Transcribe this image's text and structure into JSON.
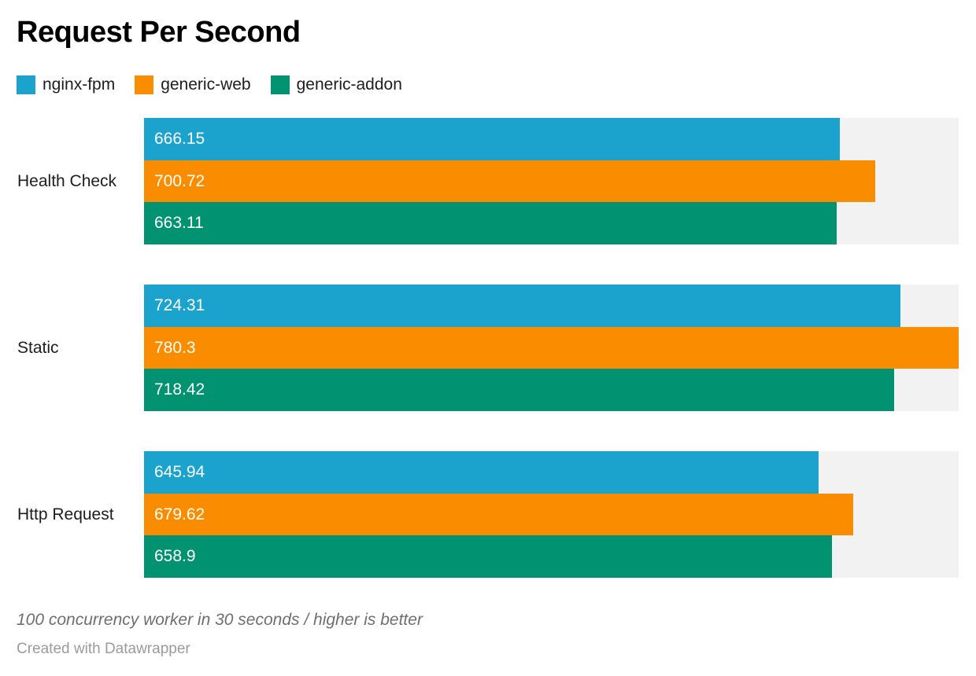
{
  "title": "Request Per Second",
  "footnote": "100 concurrency worker in 30 seconds / higher is better",
  "attribution": "Created with Datawrapper",
  "colors": {
    "background": "#ffffff",
    "track": "#f2f2f2",
    "text_dark": "#1d1d1d",
    "footnote_gray": "#6e6e6e",
    "attribution_gray": "#9b9b9b"
  },
  "chart_data": {
    "type": "bar",
    "orientation": "horizontal",
    "title": "Request Per Second",
    "categories": [
      "Health Check",
      "Static",
      "Http Request"
    ],
    "series": [
      {
        "name": "nginx-fpm",
        "color": "#1ba3ce",
        "values": [
          666.15,
          724.31,
          645.94
        ]
      },
      {
        "name": "generic-web",
        "color": "#fa8c00",
        "values": [
          700.72,
          780.3,
          679.62
        ]
      },
      {
        "name": "generic-addon",
        "color": "#009271",
        "values": [
          663.11,
          718.42,
          658.9
        ]
      }
    ],
    "xlim": [
      0,
      780.3
    ],
    "value_labels": true,
    "grid": false,
    "legend_position": "top",
    "track_color": "#f2f2f2"
  }
}
